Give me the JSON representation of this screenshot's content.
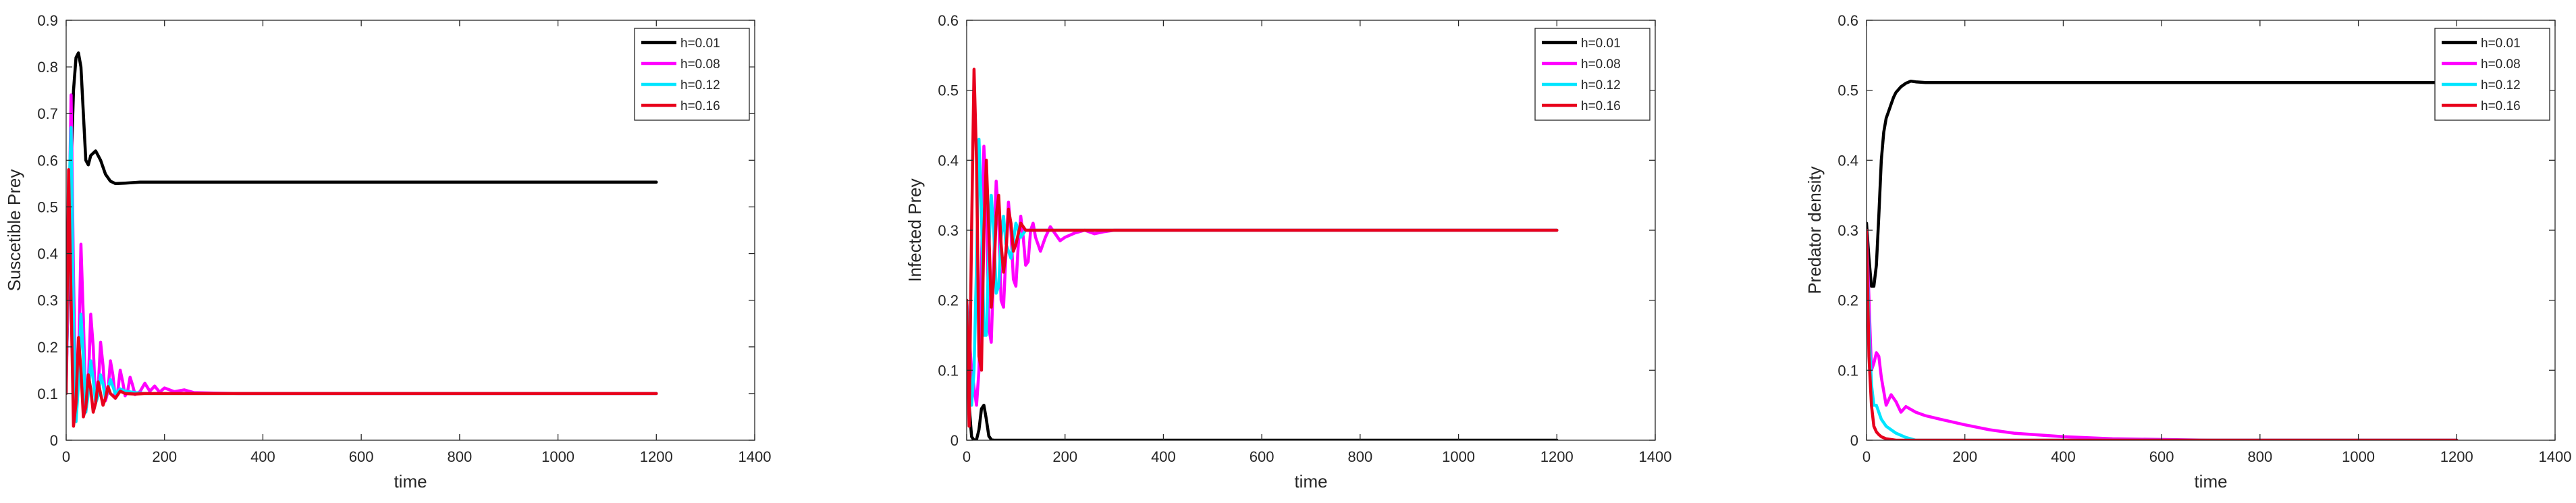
{
  "chart_data": [
    {
      "type": "line",
      "xlabel": "time",
      "ylabel": "Suscetible Prey",
      "xlim": [
        0,
        1400
      ],
      "ylim": [
        0,
        0.9
      ],
      "xticks": [
        0,
        200,
        400,
        600,
        800,
        1000,
        1200,
        1400
      ],
      "yticks": [
        0,
        0.1,
        0.2,
        0.3,
        0.4,
        0.5,
        0.6,
        0.7,
        0.8,
        0.9
      ],
      "legend_position": "top-right",
      "grid": false,
      "series": [
        {
          "name": "h=0.01",
          "color": "#000000",
          "x": [
            0,
            5,
            10,
            15,
            20,
            25,
            30,
            35,
            40,
            45,
            50,
            60,
            70,
            80,
            90,
            100,
            120,
            150,
            200,
            300,
            500,
            800,
            1200
          ],
          "y": [
            0.13,
            0.36,
            0.58,
            0.75,
            0.82,
            0.83,
            0.8,
            0.7,
            0.6,
            0.59,
            0.61,
            0.62,
            0.6,
            0.57,
            0.555,
            0.55,
            0.551,
            0.553,
            0.553,
            0.553,
            0.553,
            0.553,
            0.553
          ]
        },
        {
          "name": "h=0.08",
          "color": "#ff00ff",
          "x": [
            0,
            5,
            10,
            15,
            20,
            25,
            30,
            35,
            40,
            45,
            50,
            55,
            60,
            65,
            70,
            75,
            80,
            85,
            90,
            95,
            100,
            105,
            110,
            115,
            120,
            125,
            130,
            135,
            140,
            150,
            160,
            170,
            180,
            190,
            200,
            220,
            240,
            260,
            300,
            350,
            400,
            600,
            1200
          ],
          "y": [
            0.1,
            0.4,
            0.74,
            0.35,
            0.05,
            0.15,
            0.42,
            0.26,
            0.07,
            0.12,
            0.27,
            0.2,
            0.08,
            0.11,
            0.21,
            0.16,
            0.085,
            0.105,
            0.17,
            0.14,
            0.09,
            0.105,
            0.15,
            0.125,
            0.095,
            0.105,
            0.135,
            0.118,
            0.098,
            0.104,
            0.122,
            0.105,
            0.116,
            0.103,
            0.112,
            0.104,
            0.108,
            0.102,
            0.101,
            0.1,
            0.1,
            0.1,
            0.1
          ]
        },
        {
          "name": "h=0.12",
          "color": "#00e5ff",
          "x": [
            0,
            5,
            10,
            15,
            20,
            25,
            30,
            35,
            40,
            45,
            50,
            55,
            60,
            65,
            70,
            75,
            80,
            90,
            100,
            110,
            120,
            140,
            160,
            200,
            400,
            1200
          ],
          "y": [
            0.1,
            0.5,
            0.67,
            0.25,
            0.04,
            0.12,
            0.27,
            0.18,
            0.06,
            0.1,
            0.17,
            0.13,
            0.08,
            0.095,
            0.14,
            0.12,
            0.09,
            0.13,
            0.1,
            0.11,
            0.105,
            0.102,
            0.1,
            0.1,
            0.1,
            0.1
          ]
        },
        {
          "name": "h=0.16",
          "color": "#e8001c",
          "x": [
            0,
            5,
            10,
            15,
            20,
            25,
            30,
            35,
            40,
            45,
            50,
            55,
            60,
            65,
            70,
            75,
            80,
            85,
            90,
            100,
            110,
            120,
            140,
            160,
            200,
            400,
            1200
          ],
          "y": [
            0.1,
            0.58,
            0.3,
            0.03,
            0.08,
            0.22,
            0.15,
            0.05,
            0.07,
            0.14,
            0.11,
            0.06,
            0.08,
            0.125,
            0.1,
            0.075,
            0.09,
            0.115,
            0.1,
            0.09,
            0.105,
            0.1,
            0.099,
            0.1,
            0.1,
            0.1,
            0.1
          ]
        }
      ]
    },
    {
      "type": "line",
      "xlabel": "time",
      "ylabel": "Infected Prey",
      "xlim": [
        0,
        1400
      ],
      "ylim": [
        0,
        0.6
      ],
      "xticks": [
        0,
        200,
        400,
        600,
        800,
        1000,
        1200,
        1400
      ],
      "yticks": [
        0,
        0.1,
        0.2,
        0.3,
        0.4,
        0.5,
        0.6
      ],
      "legend_position": "top-right",
      "grid": false,
      "series": [
        {
          "name": "h=0.01",
          "color": "#000000",
          "x": [
            0,
            5,
            10,
            15,
            20,
            25,
            30,
            35,
            40,
            45,
            50,
            55,
            60,
            80,
            100,
            200,
            600,
            1200
          ],
          "y": [
            0.2,
            0.05,
            0.005,
            0.0,
            0.001,
            0.015,
            0.045,
            0.05,
            0.03,
            0.006,
            0.001,
            0.0,
            0.0,
            0.0,
            0.0,
            0.0,
            0.0,
            0.0
          ]
        },
        {
          "name": "h=0.08",
          "color": "#ff00ff",
          "x": [
            0,
            10,
            20,
            25,
            30,
            35,
            40,
            45,
            50,
            55,
            60,
            65,
            70,
            75,
            80,
            85,
            90,
            95,
            100,
            105,
            110,
            115,
            120,
            125,
            130,
            135,
            140,
            150,
            160,
            170,
            180,
            190,
            200,
            220,
            240,
            260,
            280,
            300,
            350,
            400,
            600,
            1200
          ],
          "y": [
            0.2,
            0.1,
            0.05,
            0.1,
            0.25,
            0.42,
            0.35,
            0.16,
            0.14,
            0.25,
            0.37,
            0.32,
            0.2,
            0.19,
            0.27,
            0.34,
            0.3,
            0.23,
            0.22,
            0.28,
            0.32,
            0.29,
            0.25,
            0.255,
            0.3,
            0.31,
            0.29,
            0.27,
            0.29,
            0.305,
            0.295,
            0.285,
            0.29,
            0.296,
            0.3,
            0.295,
            0.298,
            0.3,
            0.3,
            0.3,
            0.3,
            0.3
          ]
        },
        {
          "name": "h=0.12",
          "color": "#00e5ff",
          "x": [
            0,
            10,
            15,
            20,
            25,
            30,
            35,
            40,
            45,
            50,
            55,
            60,
            65,
            70,
            75,
            80,
            90,
            100,
            110,
            120,
            140,
            160,
            200,
            400,
            1200
          ],
          "y": [
            0.2,
            0.05,
            0.1,
            0.25,
            0.43,
            0.33,
            0.15,
            0.15,
            0.27,
            0.35,
            0.3,
            0.21,
            0.22,
            0.29,
            0.32,
            0.28,
            0.26,
            0.31,
            0.29,
            0.3,
            0.3,
            0.3,
            0.3,
            0.3,
            0.3
          ]
        },
        {
          "name": "h=0.16",
          "color": "#e8001c",
          "x": [
            0,
            5,
            10,
            15,
            20,
            25,
            30,
            35,
            40,
            45,
            50,
            55,
            60,
            65,
            70,
            75,
            80,
            85,
            90,
            95,
            100,
            110,
            120,
            140,
            160,
            200,
            400,
            1200
          ],
          "y": [
            0.2,
            0.02,
            0.3,
            0.53,
            0.4,
            0.12,
            0.1,
            0.3,
            0.4,
            0.3,
            0.19,
            0.23,
            0.32,
            0.35,
            0.28,
            0.24,
            0.27,
            0.33,
            0.31,
            0.27,
            0.28,
            0.31,
            0.3,
            0.3,
            0.3,
            0.3,
            0.3,
            0.3
          ]
        }
      ]
    },
    {
      "type": "line",
      "xlabel": "time",
      "ylabel": "Predator density",
      "xlim": [
        0,
        1400
      ],
      "ylim": [
        0,
        0.6
      ],
      "xticks": [
        0,
        200,
        400,
        600,
        800,
        1000,
        1200,
        1400
      ],
      "yticks": [
        0,
        0.1,
        0.2,
        0.3,
        0.4,
        0.5,
        0.6
      ],
      "legend_position": "top-right",
      "grid": false,
      "series": [
        {
          "name": "h=0.01",
          "color": "#000000",
          "x": [
            0,
            5,
            10,
            15,
            20,
            25,
            30,
            35,
            40,
            45,
            50,
            55,
            60,
            70,
            80,
            90,
            100,
            120,
            150,
            200,
            400,
            800,
            1200
          ],
          "y": [
            0.31,
            0.26,
            0.22,
            0.22,
            0.25,
            0.32,
            0.4,
            0.44,
            0.46,
            0.47,
            0.48,
            0.49,
            0.497,
            0.505,
            0.51,
            0.513,
            0.512,
            0.511,
            0.511,
            0.511,
            0.511,
            0.511,
            0.511
          ]
        },
        {
          "name": "h=0.08",
          "color": "#ff00ff",
          "x": [
            0,
            10,
            15,
            20,
            25,
            30,
            40,
            50,
            60,
            70,
            80,
            100,
            120,
            150,
            200,
            250,
            300,
            400,
            500,
            700,
            1200
          ],
          "y": [
            0.3,
            0.1,
            0.11,
            0.125,
            0.12,
            0.09,
            0.05,
            0.065,
            0.055,
            0.04,
            0.048,
            0.04,
            0.035,
            0.03,
            0.022,
            0.015,
            0.01,
            0.005,
            0.002,
            0.0,
            0.0
          ]
        },
        {
          "name": "h=0.12",
          "color": "#00e5ff",
          "x": [
            0,
            5,
            10,
            15,
            20,
            25,
            30,
            40,
            50,
            60,
            80,
            100,
            120,
            150,
            200,
            1200
          ],
          "y": [
            0.3,
            0.16,
            0.08,
            0.05,
            0.05,
            0.04,
            0.03,
            0.02,
            0.015,
            0.01,
            0.004,
            0.0,
            0.0,
            0.0,
            0.0,
            0.0
          ]
        },
        {
          "name": "h=0.16",
          "color": "#e8001c",
          "x": [
            0,
            5,
            10,
            15,
            20,
            25,
            30,
            40,
            50,
            60,
            80,
            100,
            1200
          ],
          "y": [
            0.3,
            0.12,
            0.05,
            0.02,
            0.012,
            0.008,
            0.005,
            0.002,
            0.001,
            0.0,
            0.0,
            0.0,
            0.0
          ]
        }
      ]
    }
  ]
}
